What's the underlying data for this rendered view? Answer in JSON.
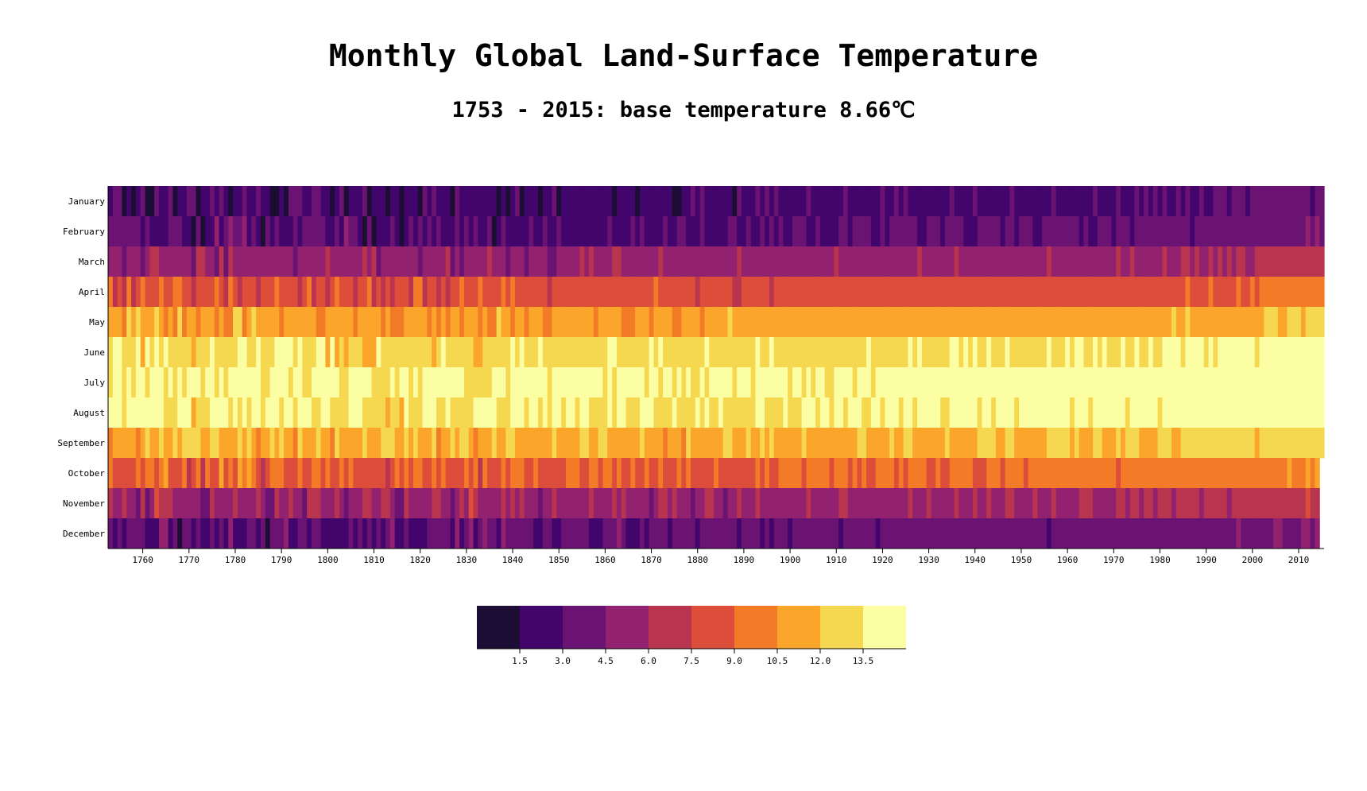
{
  "chart_data": {
    "type": "heatmap",
    "title": "Monthly Global Land-Surface Temperature",
    "subtitle": "1753 - 2015: base temperature 8.66℃",
    "base_temperature": 8.66,
    "year_range": [
      1753,
      2015
    ],
    "months": [
      "January",
      "February",
      "March",
      "April",
      "May",
      "June",
      "July",
      "August",
      "September",
      "October",
      "November",
      "December"
    ],
    "x_ticks": [
      1760,
      1770,
      1780,
      1790,
      1800,
      1810,
      1820,
      1830,
      1840,
      1850,
      1860,
      1870,
      1880,
      1890,
      1900,
      1910,
      1920,
      1930,
      1940,
      1950,
      1960,
      1970,
      1980,
      1990,
      2000,
      2010
    ],
    "monthly_mean_temp": [
      2.6,
      3.2,
      5.6,
      8.4,
      11.3,
      13.3,
      14.2,
      13.7,
      11.9,
      9.2,
      5.9,
      3.6
    ],
    "legend": {
      "colors": [
        "#1b0d33",
        "#42056b",
        "#6b1372",
        "#92226f",
        "#b9344f",
        "#dc4d3a",
        "#f37b28",
        "#fba62a",
        "#f6d850",
        "#fcfea4"
      ],
      "thresholds": [
        "1.5",
        "3.0",
        "4.5",
        "6.0",
        "7.5",
        "9.0",
        "10.5",
        "12.0",
        "13.5"
      ]
    }
  }
}
